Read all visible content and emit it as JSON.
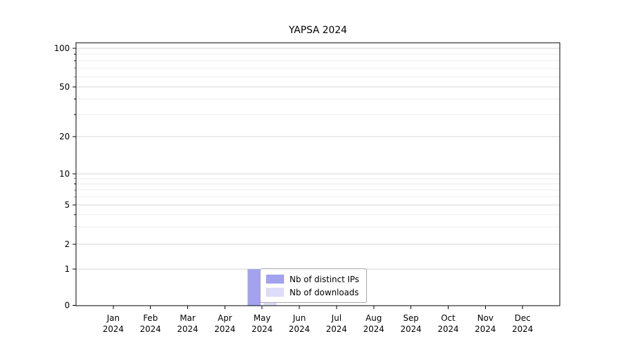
{
  "chart_data": {
    "type": "bar",
    "title": "YAPSA 2024",
    "categories": [
      "Jan",
      "Feb",
      "Mar",
      "Apr",
      "May",
      "Jun",
      "Jul",
      "Aug",
      "Sep",
      "Oct",
      "Nov",
      "Dec"
    ],
    "category_year": "2024",
    "series": [
      {
        "name": "Nb of distinct IPs",
        "color": "#a2a2ef",
        "values": [
          0,
          0,
          0,
          0,
          1,
          0,
          0,
          0,
          0,
          0,
          0,
          0
        ]
      },
      {
        "name": "Nb of downloads",
        "color": "#dddcfa",
        "values": [
          0,
          0,
          0,
          0,
          1,
          0,
          0,
          0,
          0,
          0,
          0,
          0
        ]
      }
    ],
    "xlabel": "",
    "ylabel": "",
    "yticks": [
      0,
      1,
      2,
      5,
      10,
      20,
      50,
      100
    ],
    "minor_yticks": [
      3,
      4,
      6,
      7,
      8,
      9,
      30,
      40,
      60,
      70,
      80,
      90
    ],
    "ylim": [
      0,
      110
    ],
    "yscale": "log-like (0 pinned at baseline)",
    "grid": "horizontal",
    "legend": {
      "position": "inside-bottom-center",
      "items": [
        "Nb of distinct IPs",
        "Nb of downloads"
      ]
    }
  }
}
